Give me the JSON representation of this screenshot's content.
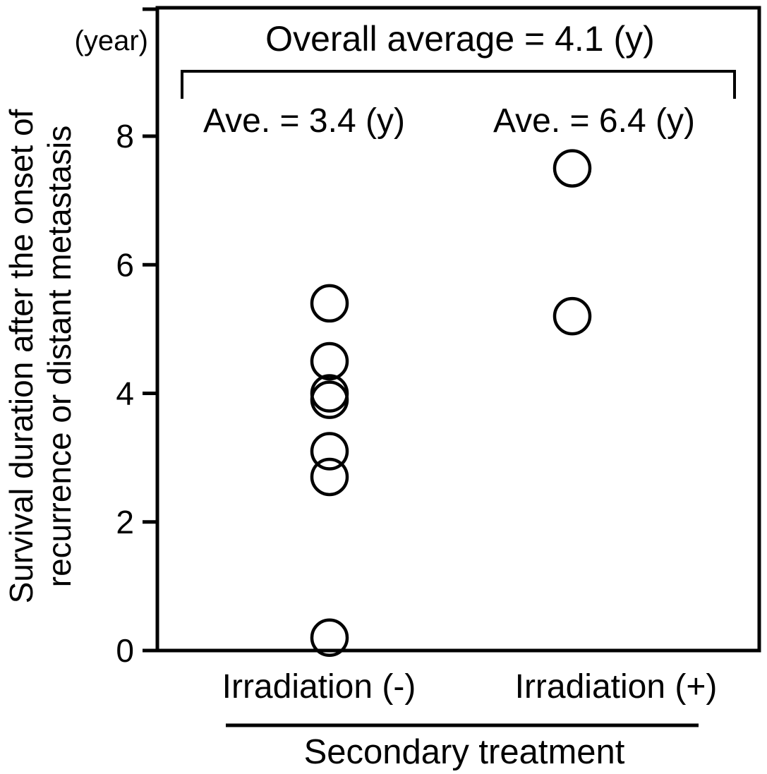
{
  "figure": {
    "y_axis": {
      "unit_label": "(year)",
      "title_line1": "Survival duration after the onset of",
      "title_line2": "recurrence or distant metastasis"
    },
    "annotations": {
      "overall": "Overall average = 4.1 (y)",
      "group1_ave": "Ave. = 3.4 (y)",
      "group2_ave": "Ave. = 6.4 (y)"
    },
    "x_axis": {
      "group1": "Irradiation (-)",
      "group2": "Irradiation (+)",
      "axis_label": "Secondary treatment"
    }
  },
  "chart_data": {
    "type": "scatter",
    "title": "Overall average = 4.1 (y)",
    "categories": [
      "Irradiation (-)",
      "Irradiation (+)"
    ],
    "series": [
      {
        "name": "Irradiation (-)",
        "values": [
          5.4,
          4.5,
          4.0,
          3.9,
          3.1,
          2.7,
          0.2
        ],
        "average": 3.4,
        "average_label": "Ave. = 3.4 (y)"
      },
      {
        "name": "Irradiation (+)",
        "values": [
          7.5,
          5.2
        ],
        "average": 6.4,
        "average_label": "Ave. = 6.4 (y)"
      }
    ],
    "overall_average": 4.1,
    "ylabel": "Survival duration after the onset of recurrence or distant metastasis",
    "y_unit": "(year)",
    "xlabel": "Secondary treatment",
    "yticks": [
      0,
      2,
      4,
      6,
      8
    ],
    "ylim": [
      0,
      10
    ],
    "grid": false,
    "legend": "none",
    "marker": "open-circle"
  },
  "colors": {
    "ink": "#000000",
    "background": "#ffffff"
  }
}
